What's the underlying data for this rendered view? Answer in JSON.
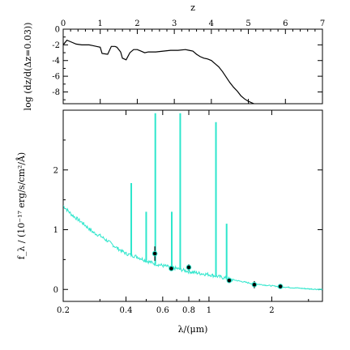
{
  "chart_data": [
    {
      "type": "line",
      "panel": "top",
      "xlabel": "z",
      "ylabel": "log (dz/d(Δz=0.03))",
      "xlim": [
        0,
        7
      ],
      "ylim": [
        -9.5,
        0
      ],
      "xticks": [
        "0",
        "1",
        "2",
        "3",
        "4",
        "5",
        "6",
        "7"
      ],
      "yticks": [
        "0",
        "-2",
        "-4",
        "-6",
        "-8"
      ],
      "series": [
        {
          "color": "#000000",
          "x": [
            0.0,
            0.1,
            0.2,
            0.35,
            0.5,
            0.7,
            0.8,
            0.9,
            1.0,
            1.05,
            1.2,
            1.3,
            1.4,
            1.45,
            1.55,
            1.6,
            1.7,
            1.8,
            1.9,
            2.0,
            2.1,
            2.2,
            2.3,
            2.5,
            2.7,
            2.9,
            3.1,
            3.3,
            3.4,
            3.5,
            3.6,
            3.7,
            3.8,
            3.9,
            4.0,
            4.1,
            4.2,
            4.3,
            4.4,
            4.5,
            4.6,
            4.7,
            4.8,
            4.9,
            5.0,
            5.1,
            5.2
          ],
          "y": [
            -2.0,
            -1.4,
            -1.6,
            -1.9,
            -2.0,
            -2.0,
            -2.1,
            -2.2,
            -2.3,
            -3.1,
            -3.2,
            -2.2,
            -2.2,
            -2.3,
            -2.9,
            -3.7,
            -3.9,
            -3.0,
            -2.6,
            -2.6,
            -2.8,
            -3.0,
            -2.9,
            -2.9,
            -2.8,
            -2.7,
            -2.7,
            -2.6,
            -2.7,
            -2.8,
            -3.2,
            -3.5,
            -3.7,
            -3.8,
            -4.0,
            -4.4,
            -4.8,
            -5.4,
            -6.1,
            -6.8,
            -7.4,
            -7.9,
            -8.5,
            -8.9,
            -9.2,
            -9.4,
            -9.6
          ]
        }
      ]
    },
    {
      "type": "line",
      "panel": "bottom",
      "xlabel": "λ/(μm)",
      "ylabel": "f_λ / (10⁻¹⁷ erg/s/cm²/Å)",
      "xscale": "log",
      "xlim": [
        0.2,
        3.5
      ],
      "ylim": [
        -0.2,
        3.0
      ],
      "xticks": [
        {
          "value": 0.2,
          "label": "0.2"
        },
        {
          "value": 0.4,
          "label": "0.4"
        },
        {
          "value": 0.6,
          "label": "0.6"
        },
        {
          "value": 0.8,
          "label": "0.8"
        },
        {
          "value": 1.0,
          "label": "1"
        },
        {
          "value": 2.0,
          "label": "2"
        }
      ],
      "yticks": [
        "0",
        "1",
        "2"
      ],
      "series": [
        {
          "color": "#2ee6cc",
          "x": [
            0.2,
            0.22,
            0.25,
            0.28,
            0.3,
            0.33,
            0.36,
            0.4,
            0.45,
            0.5,
            0.55,
            0.6,
            0.7,
            0.8,
            0.9,
            1.0,
            1.2,
            1.4,
            1.6,
            2.0,
            2.5,
            3.0,
            3.5
          ],
          "y": [
            1.4,
            1.25,
            1.1,
            0.95,
            0.9,
            0.8,
            0.7,
            0.6,
            0.55,
            0.48,
            0.43,
            0.4,
            0.35,
            0.3,
            0.27,
            0.25,
            0.19,
            0.14,
            0.1,
            0.06,
            0.03,
            0.01,
            0.0
          ]
        }
      ],
      "emission_lines": [
        {
          "x": 0.424,
          "peak": 1.78
        },
        {
          "x": 0.5,
          "peak": 1.3
        },
        {
          "x": 0.553,
          "peak": 2.95
        },
        {
          "x": 0.663,
          "peak": 1.3
        },
        {
          "x": 0.728,
          "peak": 2.95
        },
        {
          "x": 1.08,
          "peak": 2.8
        },
        {
          "x": 1.215,
          "peak": 1.1
        }
      ],
      "photometry": [
        {
          "x": 0.55,
          "y": 0.6,
          "yerr": 0.12
        },
        {
          "x": 0.66,
          "y": 0.35,
          "yerr": 0.04
        },
        {
          "x": 0.8,
          "y": 0.37,
          "yerr": 0.05
        },
        {
          "x": 1.25,
          "y": 0.15,
          "yerr": 0.03
        },
        {
          "x": 1.65,
          "y": 0.08,
          "yerr": 0.06
        },
        {
          "x": 2.2,
          "y": 0.05,
          "yerr": 0.03
        }
      ]
    }
  ]
}
